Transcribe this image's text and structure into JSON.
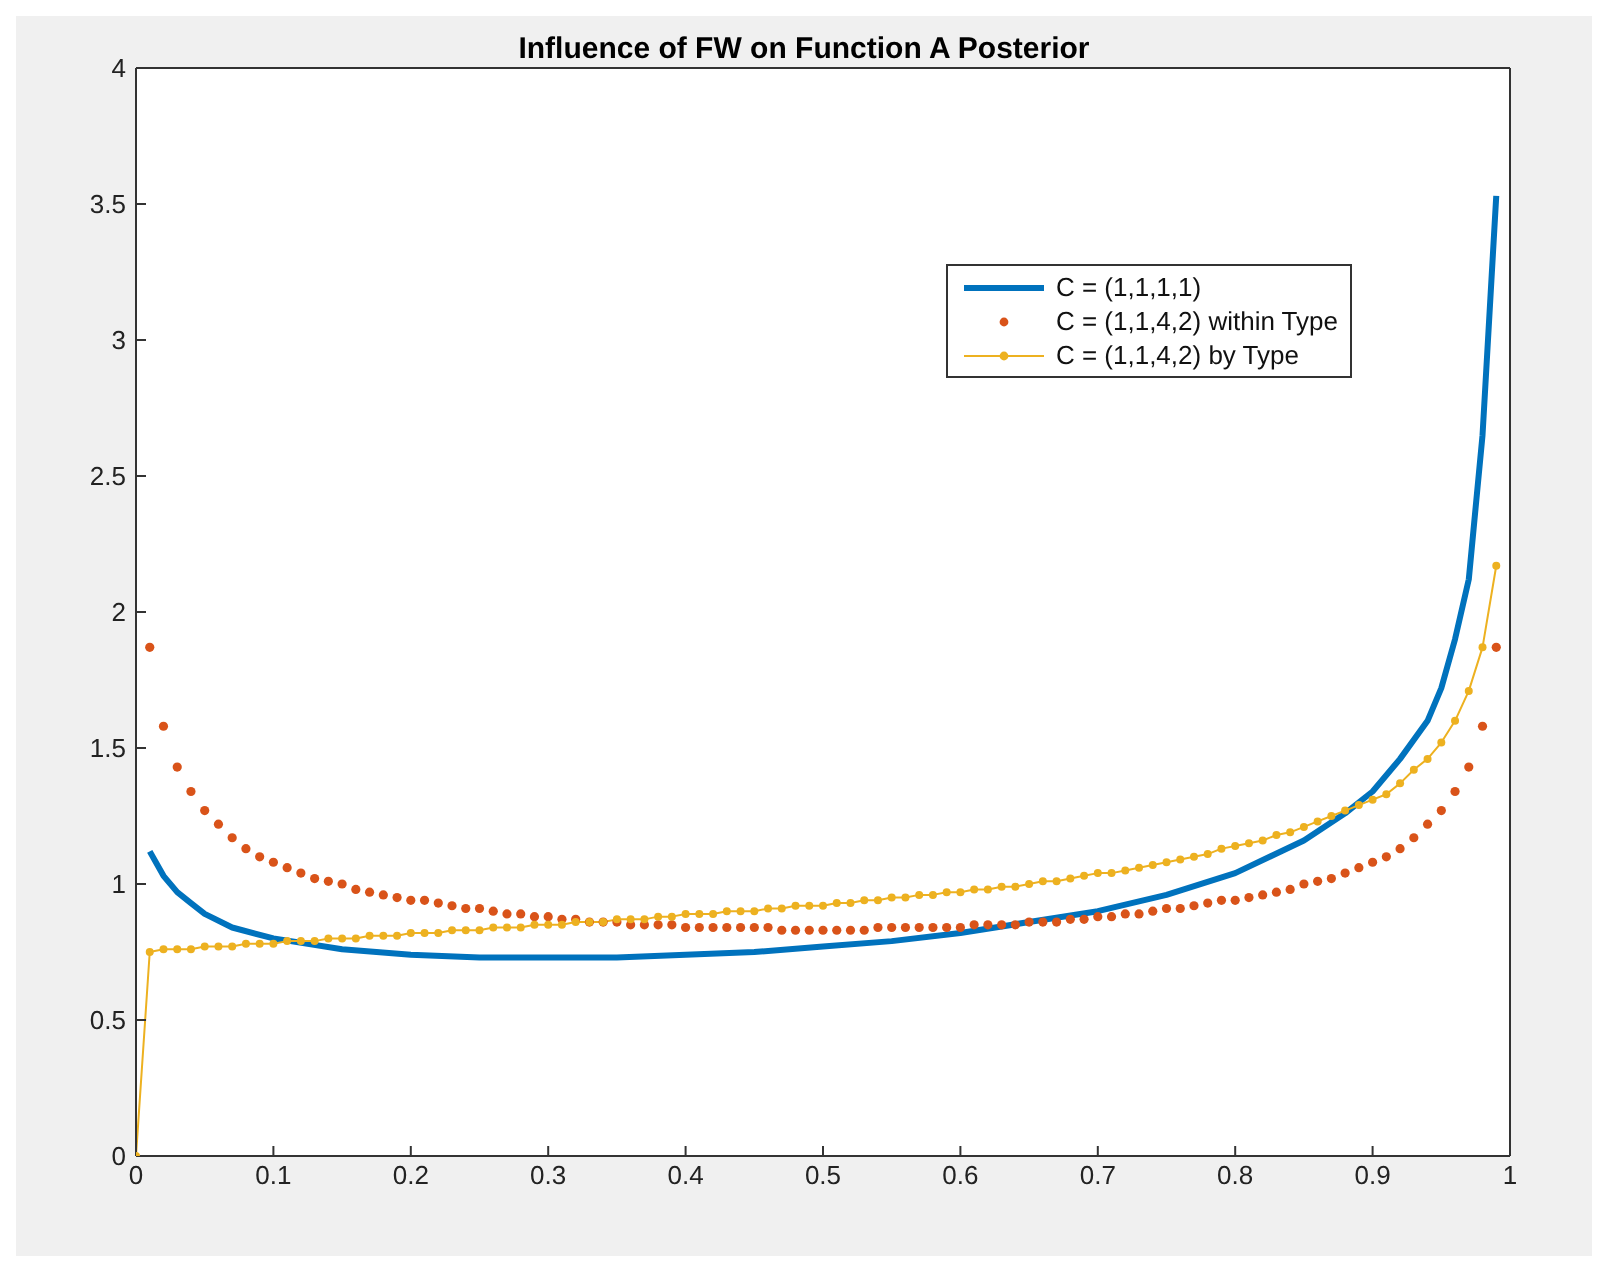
{
  "chart_data": {
    "type": "line",
    "title": "Influence of FW on Function A Posterior",
    "xlim": [
      0,
      1
    ],
    "ylim": [
      0,
      4
    ],
    "xticks": [
      0,
      0.1,
      0.2,
      0.3,
      0.4,
      0.5,
      0.6,
      0.7,
      0.8,
      0.9,
      1
    ],
    "yticks": [
      0,
      0.5,
      1,
      1.5,
      2,
      2.5,
      3,
      3.5,
      4
    ],
    "grid": false,
    "legend": "top right",
    "series": [
      {
        "name": "C = (1,1,1,1)",
        "color": "#0072bd",
        "marker": "none",
        "line_style": "solid",
        "x": [
          0.01,
          0.02,
          0.03,
          0.04,
          0.05,
          0.07,
          0.1,
          0.15,
          0.2,
          0.25,
          0.3,
          0.35,
          0.4,
          0.45,
          0.5,
          0.55,
          0.6,
          0.65,
          0.7,
          0.75,
          0.8,
          0.85,
          0.88,
          0.9,
          0.92,
          0.94,
          0.95,
          0.96,
          0.97,
          0.98,
          0.99
        ],
        "values": [
          1.12,
          1.03,
          0.97,
          0.93,
          0.89,
          0.84,
          0.8,
          0.76,
          0.74,
          0.73,
          0.73,
          0.73,
          0.74,
          0.75,
          0.77,
          0.79,
          0.82,
          0.86,
          0.9,
          0.96,
          1.04,
          1.16,
          1.26,
          1.34,
          1.46,
          1.6,
          1.72,
          1.9,
          2.12,
          2.65,
          3.53
        ]
      },
      {
        "name": "C = (1,1,4,2) within Type",
        "type": "scatter",
        "color": "#d95319",
        "marker": "circle",
        "x": [
          0.01,
          0.02,
          0.03,
          0.04,
          0.05,
          0.06,
          0.07,
          0.08,
          0.09,
          0.1,
          0.11,
          0.12,
          0.13,
          0.14,
          0.15,
          0.16,
          0.17,
          0.18,
          0.19,
          0.2,
          0.21,
          0.22,
          0.23,
          0.24,
          0.25,
          0.26,
          0.27,
          0.28,
          0.29,
          0.3,
          0.31,
          0.32,
          0.33,
          0.34,
          0.35,
          0.36,
          0.37,
          0.38,
          0.39,
          0.4,
          0.41,
          0.42,
          0.43,
          0.44,
          0.45,
          0.46,
          0.47,
          0.48,
          0.49,
          0.5,
          0.51,
          0.52,
          0.53,
          0.54,
          0.55,
          0.56,
          0.57,
          0.58,
          0.59,
          0.6,
          0.61,
          0.62,
          0.63,
          0.64,
          0.65,
          0.66,
          0.67,
          0.68,
          0.69,
          0.7,
          0.71,
          0.72,
          0.73,
          0.74,
          0.75,
          0.76,
          0.77,
          0.78,
          0.79,
          0.8,
          0.81,
          0.82,
          0.83,
          0.84,
          0.85,
          0.86,
          0.87,
          0.88,
          0.89,
          0.9,
          0.91,
          0.92,
          0.93,
          0.94,
          0.95,
          0.96,
          0.97,
          0.98,
          0.99
        ],
        "values": [
          1.87,
          1.58,
          1.43,
          1.34,
          1.27,
          1.22,
          1.17,
          1.13,
          1.1,
          1.08,
          1.06,
          1.04,
          1.02,
          1.01,
          1.0,
          0.98,
          0.97,
          0.96,
          0.95,
          0.94,
          0.94,
          0.93,
          0.92,
          0.91,
          0.91,
          0.9,
          0.89,
          0.89,
          0.88,
          0.88,
          0.87,
          0.87,
          0.86,
          0.86,
          0.86,
          0.85,
          0.85,
          0.85,
          0.85,
          0.84,
          0.84,
          0.84,
          0.84,
          0.84,
          0.84,
          0.84,
          0.83,
          0.83,
          0.83,
          0.83,
          0.83,
          0.83,
          0.83,
          0.84,
          0.84,
          0.84,
          0.84,
          0.84,
          0.84,
          0.84,
          0.85,
          0.85,
          0.85,
          0.85,
          0.86,
          0.86,
          0.86,
          0.87,
          0.87,
          0.88,
          0.88,
          0.89,
          0.89,
          0.9,
          0.91,
          0.91,
          0.92,
          0.93,
          0.94,
          0.94,
          0.95,
          0.96,
          0.97,
          0.98,
          1.0,
          1.01,
          1.02,
          1.04,
          1.06,
          1.08,
          1.1,
          1.13,
          1.17,
          1.22,
          1.27,
          1.34,
          1.43,
          1.58,
          1.87
        ]
      },
      {
        "name": "C = (1,1,4,2) by Type",
        "color": "#edb120",
        "marker": "circle",
        "line_style": "solid",
        "x": [
          0,
          0.01,
          0.02,
          0.03,
          0.04,
          0.05,
          0.06,
          0.07,
          0.08,
          0.09,
          0.1,
          0.11,
          0.12,
          0.13,
          0.14,
          0.15,
          0.16,
          0.17,
          0.18,
          0.19,
          0.2,
          0.21,
          0.22,
          0.23,
          0.24,
          0.25,
          0.26,
          0.27,
          0.28,
          0.29,
          0.3,
          0.31,
          0.32,
          0.33,
          0.34,
          0.35,
          0.36,
          0.37,
          0.38,
          0.39,
          0.4,
          0.41,
          0.42,
          0.43,
          0.44,
          0.45,
          0.46,
          0.47,
          0.48,
          0.49,
          0.5,
          0.51,
          0.52,
          0.53,
          0.54,
          0.55,
          0.56,
          0.57,
          0.58,
          0.59,
          0.6,
          0.61,
          0.62,
          0.63,
          0.64,
          0.65,
          0.66,
          0.67,
          0.68,
          0.69,
          0.7,
          0.71,
          0.72,
          0.73,
          0.74,
          0.75,
          0.76,
          0.77,
          0.78,
          0.79,
          0.8,
          0.81,
          0.82,
          0.83,
          0.84,
          0.85,
          0.86,
          0.87,
          0.88,
          0.89,
          0.9,
          0.91,
          0.92,
          0.93,
          0.94,
          0.95,
          0.96,
          0.97,
          0.98,
          0.99
        ],
        "values": [
          0,
          0.75,
          0.76,
          0.76,
          0.76,
          0.77,
          0.77,
          0.77,
          0.78,
          0.78,
          0.78,
          0.79,
          0.79,
          0.79,
          0.8,
          0.8,
          0.8,
          0.81,
          0.81,
          0.81,
          0.82,
          0.82,
          0.82,
          0.83,
          0.83,
          0.83,
          0.84,
          0.84,
          0.84,
          0.85,
          0.85,
          0.85,
          0.86,
          0.86,
          0.86,
          0.87,
          0.87,
          0.87,
          0.88,
          0.88,
          0.89,
          0.89,
          0.89,
          0.9,
          0.9,
          0.9,
          0.91,
          0.91,
          0.92,
          0.92,
          0.92,
          0.93,
          0.93,
          0.94,
          0.94,
          0.95,
          0.95,
          0.96,
          0.96,
          0.97,
          0.97,
          0.98,
          0.98,
          0.99,
          0.99,
          1.0,
          1.01,
          1.01,
          1.02,
          1.03,
          1.04,
          1.04,
          1.05,
          1.06,
          1.07,
          1.08,
          1.09,
          1.1,
          1.11,
          1.13,
          1.14,
          1.15,
          1.16,
          1.18,
          1.19,
          1.21,
          1.23,
          1.25,
          1.27,
          1.29,
          1.31,
          1.33,
          1.37,
          1.42,
          1.46,
          1.52,
          1.6,
          1.71,
          1.87,
          2.17
        ]
      }
    ]
  }
}
